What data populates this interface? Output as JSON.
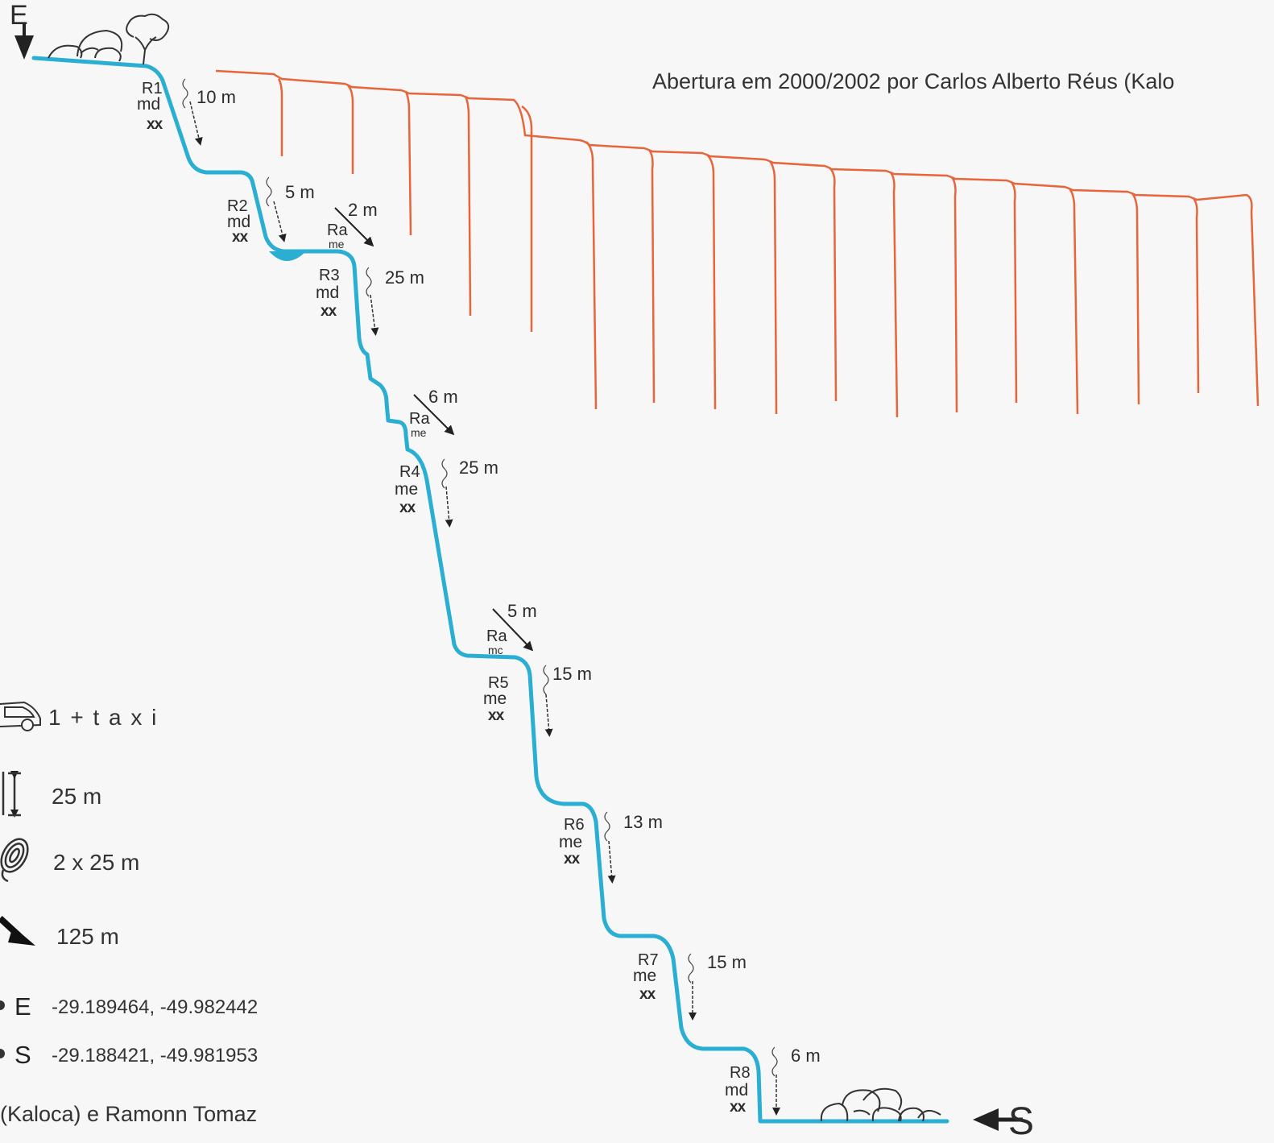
{
  "entry_marker": "E",
  "exit_marker": "S",
  "credit": {
    "top": "Abertura em  2000/2002  por  Carlos Alberto Réus (Kalo",
    "bottom": "(Kaloca) e Ramonn Tomaz"
  },
  "colors": {
    "route": "#2aaed2",
    "cliff": "#e8643a",
    "ink": "#2b2b2b"
  },
  "rappels": [
    {
      "id": "R1",
      "name": "R1",
      "anchor": "md",
      "bolts": "xx",
      "length": "10 m"
    },
    {
      "id": "R2",
      "name": "R2",
      "anchor": "md",
      "bolts": "xx",
      "length": "5 m"
    },
    {
      "id": "Ra1",
      "name": "Ra",
      "anchor": "me",
      "length": "2 m"
    },
    {
      "id": "R3",
      "name": "R3",
      "anchor": "md",
      "bolts": "xx",
      "length": "25 m"
    },
    {
      "id": "Ra2",
      "name": "Ra",
      "anchor": "me",
      "length": "6 m"
    },
    {
      "id": "R4",
      "name": "R4",
      "anchor": "me",
      "bolts": "xx",
      "length": "25 m"
    },
    {
      "id": "Ra3",
      "name": "Ra",
      "anchor": "mc",
      "length": "5 m"
    },
    {
      "id": "R5",
      "name": "R5",
      "anchor": "me",
      "bolts": "xx",
      "length": "15 m"
    },
    {
      "id": "R6",
      "name": "R6",
      "anchor": "me",
      "bolts": "xx",
      "length": "13 m"
    },
    {
      "id": "R7",
      "name": "R7",
      "anchor": "me",
      "bolts": "xx",
      "length": "15 m"
    },
    {
      "id": "R8",
      "name": "R8",
      "anchor": "md",
      "bolts": "xx",
      "length": "6 m"
    }
  ],
  "legend": {
    "car": "1 + t a x i",
    "max_rappel": "25 m",
    "rope": "2 x 25 m",
    "total_descent": "125 m",
    "entry_label": "E",
    "entry_coords": "-29.189464, -49.982442",
    "exit_label": "S",
    "exit_coords": "-29.188421, -49.981953"
  }
}
